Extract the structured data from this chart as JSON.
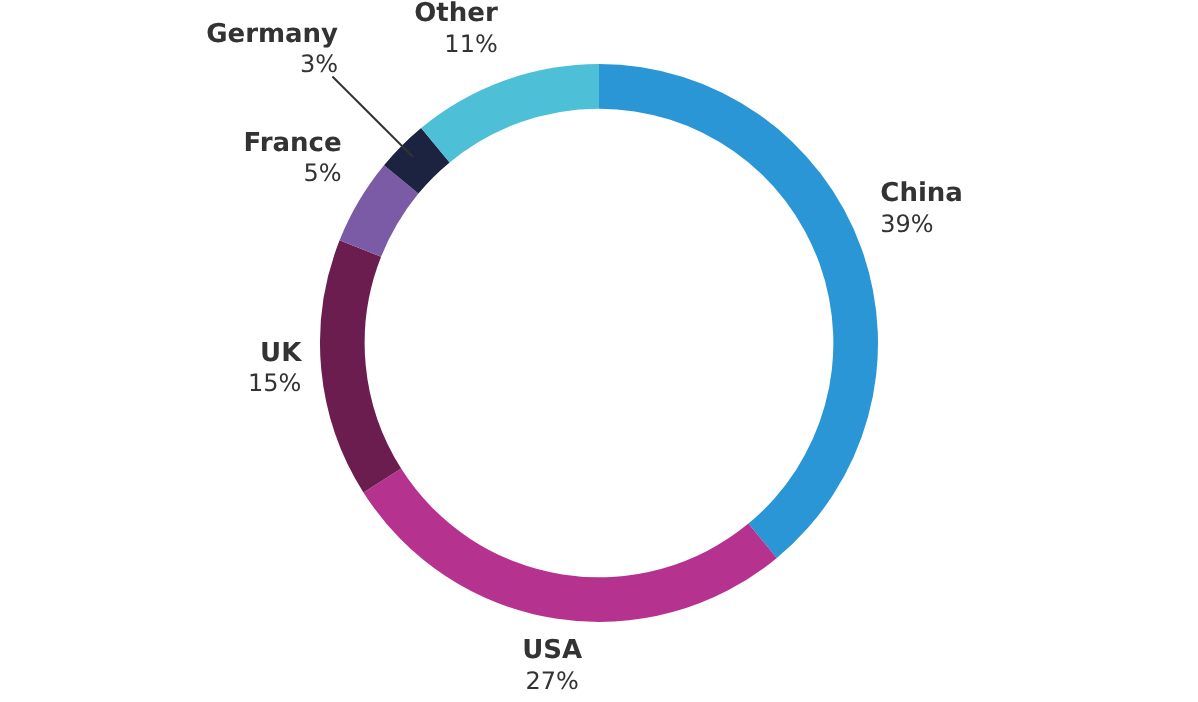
{
  "chart_data": {
    "type": "donut",
    "categories": [
      "China",
      "USA",
      "UK",
      "France",
      "Germany",
      "Other"
    ],
    "values": [
      39,
      27,
      15,
      5,
      3,
      11
    ],
    "value_labels": [
      "39%",
      "27%",
      "15%",
      "5%",
      "3%",
      "11%"
    ],
    "colors": [
      "#2a96d6",
      "#b5338f",
      "#6b1d4f",
      "#7b5aa6",
      "#1c2340",
      "#4dbfd6"
    ],
    "legend": false
  }
}
